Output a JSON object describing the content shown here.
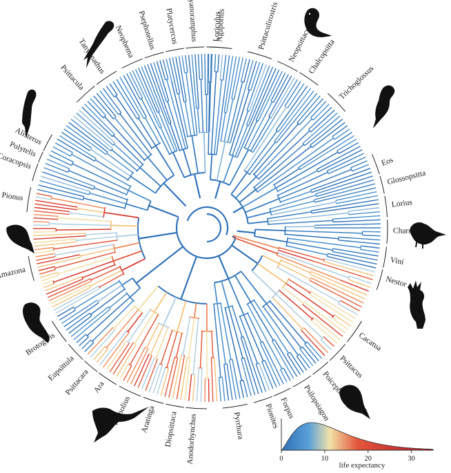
{
  "figure": {
    "type": "circular-phylogeny",
    "subject": "parrot genera colored by life expectancy"
  },
  "genera": [
    {
      "name": "Agapornis",
      "angle": -86
    },
    {
      "name": "Psittaculirostris",
      "angle": -73
    },
    {
      "name": "Neopsittacus",
      "angle": -63
    },
    {
      "name": "Chalcopsitta",
      "angle": -56
    },
    {
      "name": "Trichoglossus",
      "angle": -44
    },
    {
      "name": "Eos",
      "angle": -20
    },
    {
      "name": "Glossopsitta",
      "angle": -14
    },
    {
      "name": "Lorius",
      "angle": -7
    },
    {
      "name": "Charmosyna",
      "angle": 1
    },
    {
      "name": "Vini",
      "angle": 10
    },
    {
      "name": "Nestor",
      "angle": 16
    },
    {
      "name": "Cacatua",
      "angle": 35
    },
    {
      "name": "Psittacus",
      "angle": 44
    },
    {
      "name": "Poicephalus",
      "angle": 51
    },
    {
      "name": "Psilopsiagon",
      "angle": 58
    },
    {
      "name": "Forpus",
      "angle": 66
    },
    {
      "name": "Pionites",
      "angle": 71
    },
    {
      "name": "Pyrrhura",
      "angle": 81
    },
    {
      "name": "Anodorhynchus",
      "angle": 94
    },
    {
      "name": "Diopsittaca",
      "angle": 100
    },
    {
      "name": "Aratinga",
      "angle": 107
    },
    {
      "name": "Primolius",
      "angle": 115
    },
    {
      "name": "Ara",
      "angle": 124
    },
    {
      "name": "Psittacara",
      "angle": 130
    },
    {
      "name": "Eupsittula",
      "angle": 136
    },
    {
      "name": "Brotogeris",
      "angle": 145
    },
    {
      "name": "Amazona",
      "angle": 167
    },
    {
      "name": "Pionus",
      "angle": 189
    },
    {
      "name": "Coracopsis",
      "angle": 199
    },
    {
      "name": "Polytelis",
      "angle": 203
    },
    {
      "name": "Alisterus",
      "angle": 207
    },
    {
      "name": "Psittacula",
      "angle": 228
    },
    {
      "name": "Tanygnathus",
      "angle": 236
    },
    {
      "name": "Neophema",
      "angle": 246
    },
    {
      "name": "Psephotellus",
      "angle": 253
    },
    {
      "name": "Platycercus",
      "angle": 260
    },
    {
      "name": "Cyanoramphus",
      "angle": 266
    },
    {
      "name": "Loriculus",
      "angle": 273
    }
  ],
  "silhouettes": [
    {
      "name": "parakeet-silhouette-icon"
    },
    {
      "name": "lory-silhouette-icon"
    },
    {
      "name": "parrot-silhouette-icon"
    },
    {
      "name": "kaka-silhouette-icon"
    },
    {
      "name": "cockatoo-silhouette-icon"
    },
    {
      "name": "lovebird-silhouette-icon"
    },
    {
      "name": "macaw-silhouette-icon"
    },
    {
      "name": "amazon-silhouette-icon"
    },
    {
      "name": "pionus-silhouette-icon"
    },
    {
      "name": "ringneck-silhouette-icon"
    }
  ],
  "legend": {
    "type": "density",
    "xlabel": "life expectancy",
    "ticks": [
      "0",
      "10",
      "20",
      "30"
    ],
    "range": [
      0,
      35
    ],
    "peak": 7,
    "colors": [
      "#2e6fb5",
      "#5aa0d8",
      "#f2e2a8",
      "#e3563c",
      "#b2182b"
    ]
  }
}
